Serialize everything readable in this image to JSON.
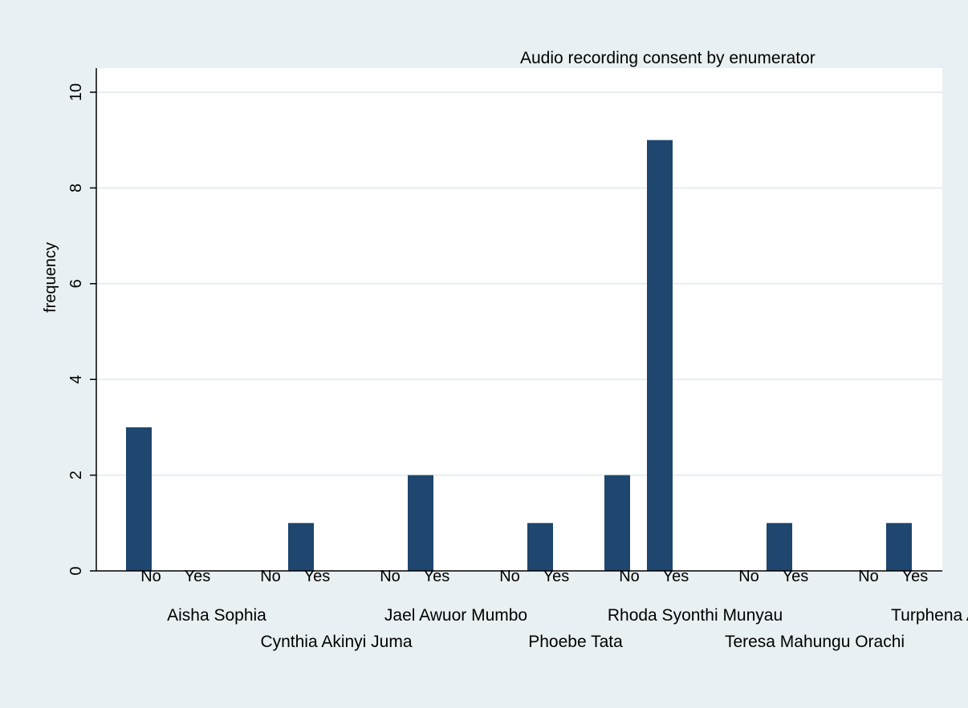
{
  "chart_data": {
    "type": "bar",
    "title": "Audio recording consent by enumerator",
    "ylabel": "frequency",
    "xlabel": "",
    "ylim": [
      0,
      10
    ],
    "yticks": [
      0,
      2,
      4,
      6,
      8,
      10
    ],
    "grid": true,
    "bar_color": "#1e466e",
    "plot_background": "#ffffff",
    "page_background": "#e9f0f3",
    "gridline_color": "#e6edf0",
    "groups": [
      {
        "name": "Aisha Sophia",
        "bars": [
          {
            "label": "No",
            "value": 3
          },
          {
            "label": "Yes",
            "value": 0
          }
        ]
      },
      {
        "name": "Cynthia Akinyi Juma",
        "bars": [
          {
            "label": "No",
            "value": 0
          },
          {
            "label": "Yes",
            "value": 1
          }
        ]
      },
      {
        "name": "Jael Awuor Mumbo",
        "bars": [
          {
            "label": "No",
            "value": 0
          },
          {
            "label": "Yes",
            "value": 2
          }
        ]
      },
      {
        "name": "Phoebe Tata",
        "bars": [
          {
            "label": "No",
            "value": 0
          },
          {
            "label": "Yes",
            "value": 1
          }
        ]
      },
      {
        "name": "Rhoda Syonthi Munyau",
        "bars": [
          {
            "label": "No",
            "value": 2
          },
          {
            "label": "Yes",
            "value": 9
          }
        ]
      },
      {
        "name": "Teresa Mahungu Orachi",
        "bars": [
          {
            "label": "No",
            "value": 0
          },
          {
            "label": "Yes",
            "value": 1
          }
        ]
      },
      {
        "name": "Turphena A",
        "bars": [
          {
            "label": "No",
            "value": 0
          },
          {
            "label": "Yes",
            "value": 1
          }
        ]
      }
    ]
  }
}
